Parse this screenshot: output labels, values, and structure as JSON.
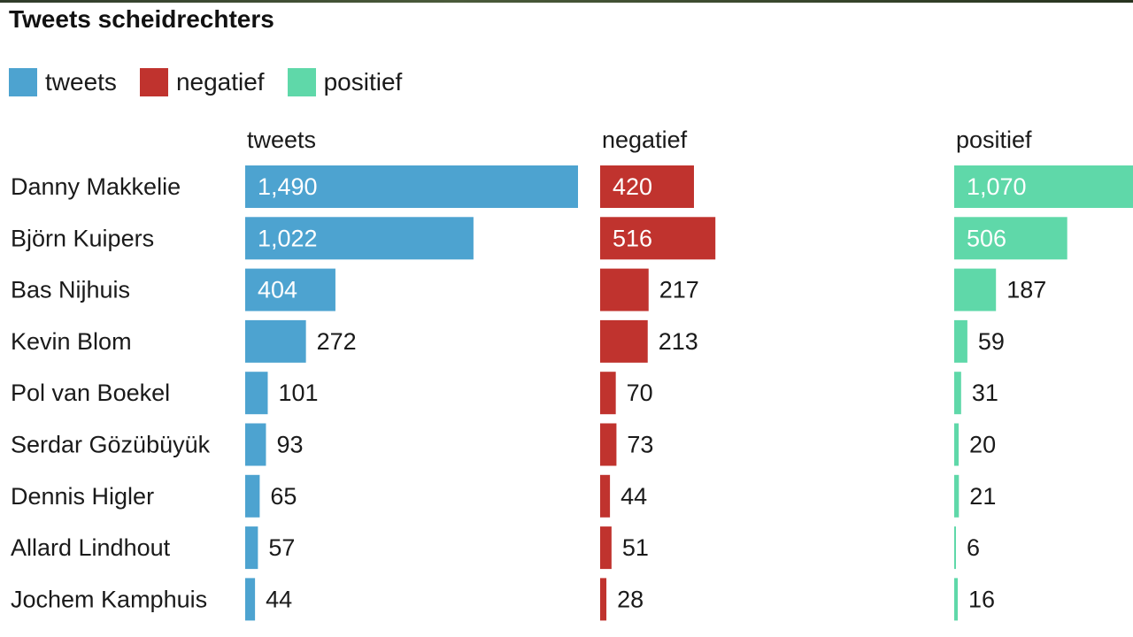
{
  "chart_data": {
    "type": "bar",
    "title": "Tweets scheidrechters",
    "legend": [
      "tweets",
      "negatief",
      "positief"
    ],
    "legend_position": "top-left",
    "categories": [
      "Danny Makkelie",
      "Björn Kuipers",
      "Bas Nijhuis",
      "Kevin Blom",
      "Pol van Boekel",
      "Serdar Gözübüyük",
      "Dennis Higler",
      "Allard Lindhout",
      "Jochem Kamphuis"
    ],
    "series": [
      {
        "name": "tweets",
        "color": "#4da3d0",
        "values": [
          1490,
          1022,
          404,
          272,
          101,
          93,
          65,
          57,
          44
        ],
        "labels": [
          "1,490",
          "1,022",
          "404",
          "272",
          "101",
          "93",
          "65",
          "57",
          "44"
        ]
      },
      {
        "name": "negatief",
        "color": "#c0332e",
        "values": [
          420,
          516,
          217,
          213,
          70,
          73,
          44,
          51,
          28
        ],
        "labels": [
          "420",
          "516",
          "217",
          "213",
          "70",
          "73",
          "44",
          "51",
          "28"
        ]
      },
      {
        "name": "positief",
        "color": "#5fd8a9",
        "values": [
          1070,
          506,
          187,
          59,
          31,
          20,
          21,
          6,
          16
        ],
        "labels": [
          "1,070",
          "506",
          "187",
          "59",
          "31",
          "20",
          "21",
          "6",
          "16"
        ]
      }
    ],
    "grid": false
  }
}
